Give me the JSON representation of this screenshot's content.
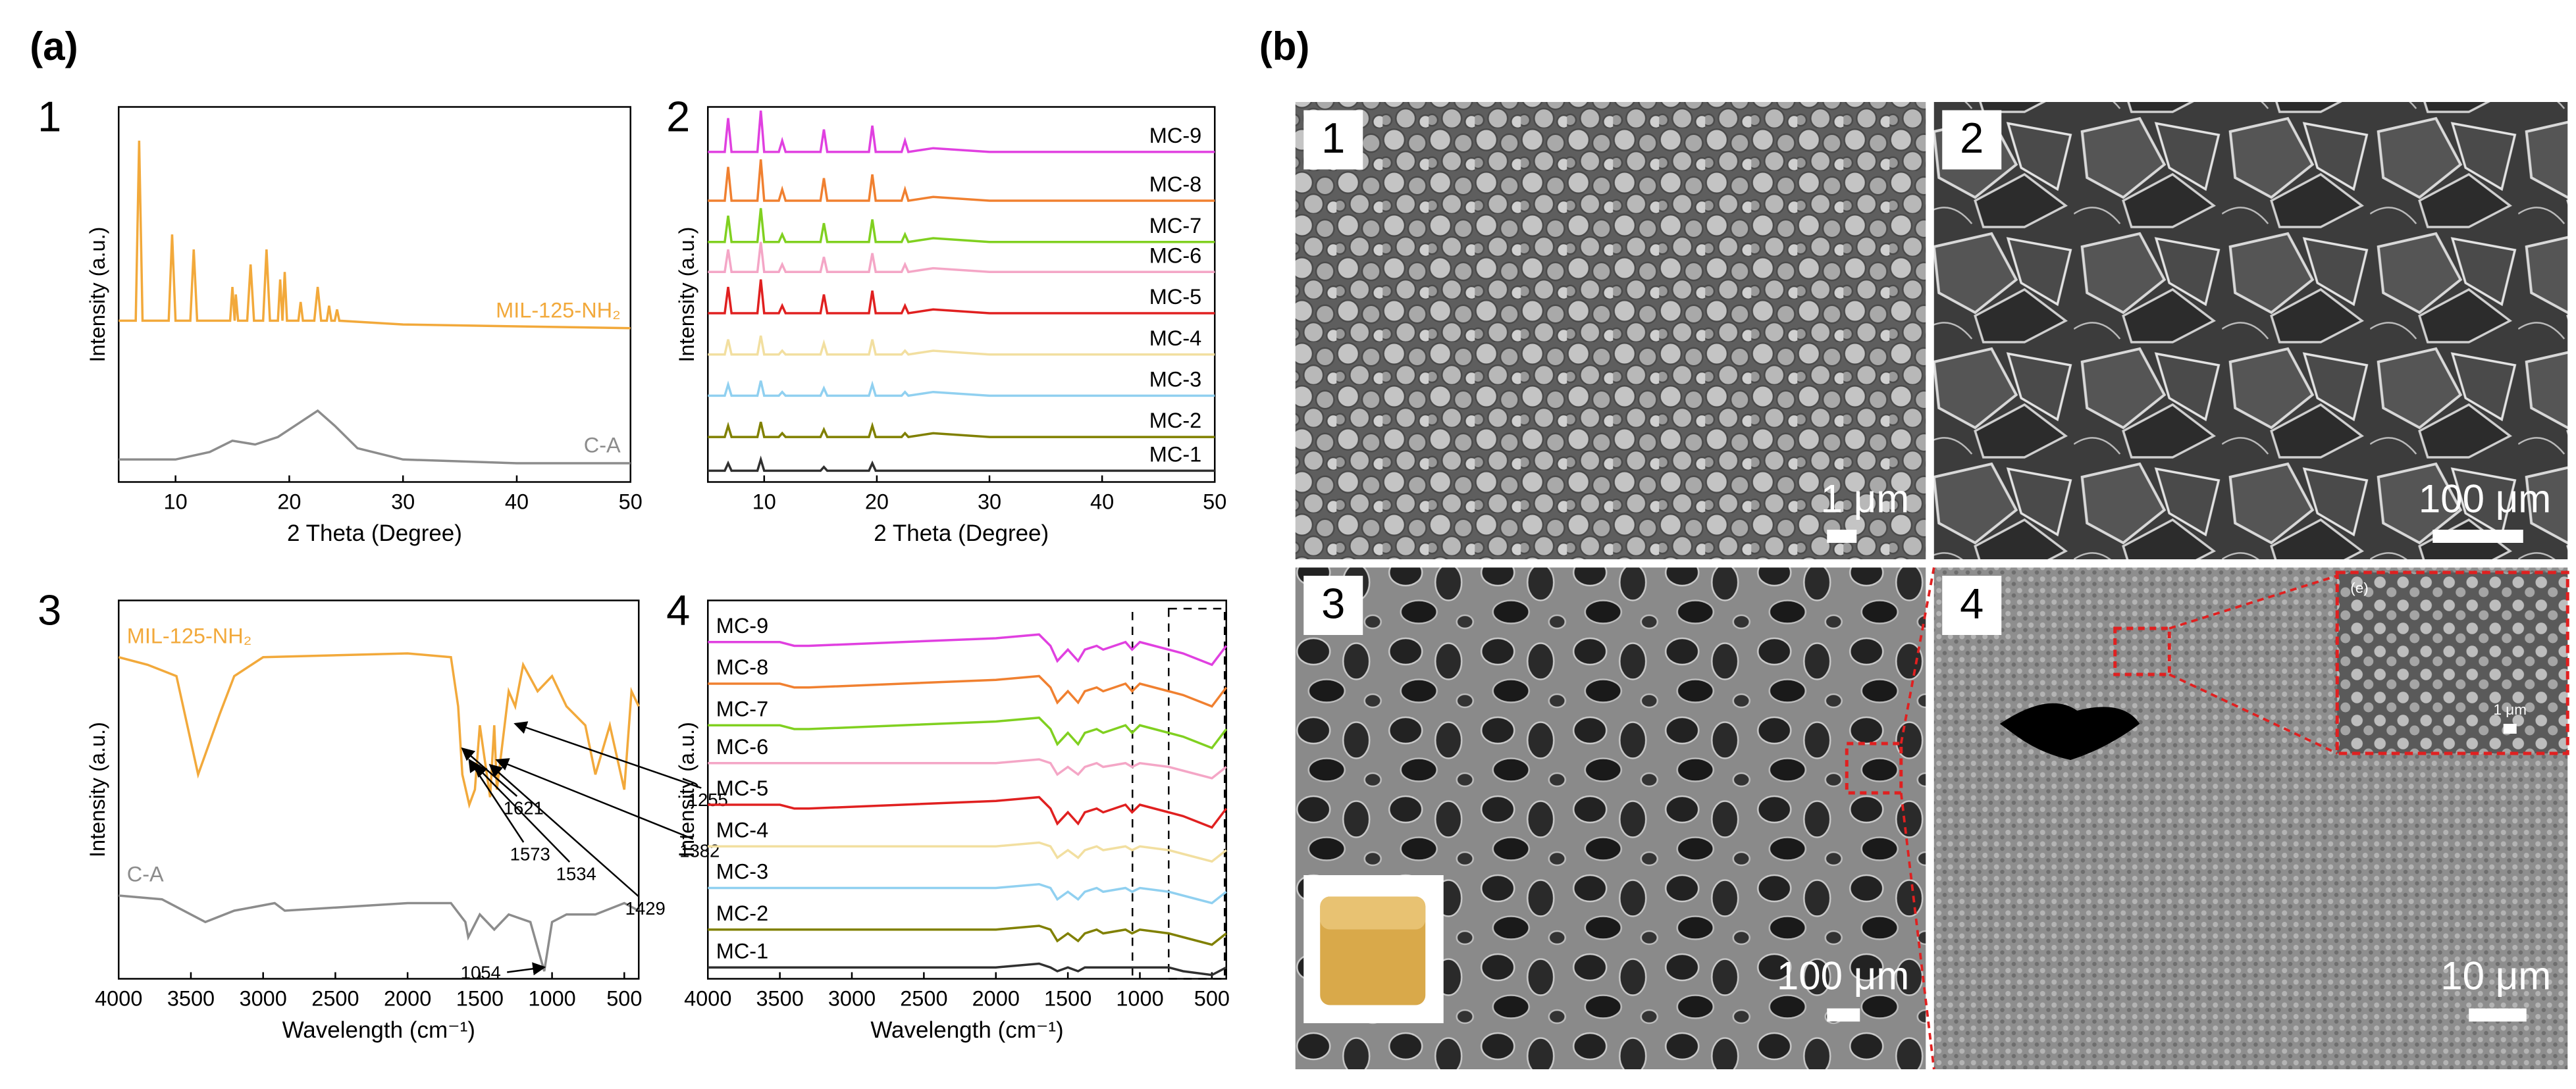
{
  "figure": {
    "label_a": "(a)",
    "label_b": "(b)"
  },
  "chart_data": [
    {
      "type": "line",
      "panel": "1",
      "xlabel": "2 Theta (Degree)",
      "ylabel": "Intensity (a.u.)",
      "xlim": [
        5,
        50
      ],
      "xticks": [
        10,
        20,
        30,
        40,
        50
      ],
      "ylim": [
        0,
        100
      ],
      "series": [
        {
          "name": "MIL-125-NH₂",
          "color": "#f2a93b",
          "x": [
            5,
            6.5,
            6.8,
            7.1,
            9.4,
            9.7,
            10,
            11.3,
            11.6,
            11.9,
            14.8,
            15,
            15.2,
            15.3,
            15.5,
            16.3,
            16.6,
            16.9,
            17.7,
            18,
            18.3,
            19,
            19.2,
            19.4,
            19.6,
            19.8,
            20.8,
            21,
            21.2,
            22.2,
            22.5,
            22.8,
            23.3,
            23.5,
            23.7,
            24,
            24.2,
            24.4,
            30,
            50
          ],
          "values": [
            43,
            43,
            91,
            43,
            43,
            66,
            43,
            43,
            62,
            43,
            43,
            52,
            43,
            50,
            43,
            43,
            58,
            43,
            43,
            62,
            43,
            43,
            54,
            43,
            56,
            43,
            43,
            48,
            43,
            43,
            52,
            43,
            43,
            47,
            43,
            43,
            46,
            43,
            42,
            41
          ]
        },
        {
          "name": "C-A",
          "color": "#8c8c8c",
          "x": [
            5,
            10,
            13,
            15,
            17,
            19,
            21,
            22.5,
            24,
            26,
            30,
            40,
            50
          ],
          "values": [
            6,
            6,
            8,
            11,
            10,
            12,
            16,
            19,
            15,
            9,
            6,
            5,
            5
          ]
        }
      ]
    },
    {
      "type": "line",
      "panel": "2",
      "xlabel": "2 Theta (Degree)",
      "ylabel": "Intensity (a.u.)",
      "xlim": [
        5,
        50
      ],
      "xticks": [
        10,
        20,
        30,
        40,
        50
      ],
      "ylim": [
        0,
        100
      ],
      "x": [
        5,
        6.5,
        6.8,
        7.1,
        9.4,
        9.7,
        10,
        11.3,
        11.6,
        11.9,
        15,
        15.3,
        15.6,
        19.3,
        19.6,
        19.9,
        22.2,
        22.5,
        22.8,
        25,
        30,
        50
      ],
      "series": [
        {
          "name": "MC-9",
          "color": "#e040e0",
          "values": [
            88,
            88,
            97,
            88,
            88,
            99,
            88,
            88,
            91,
            88,
            88,
            94,
            88,
            88,
            95,
            88,
            88,
            91,
            88,
            89,
            88,
            88
          ]
        },
        {
          "name": "MC-8",
          "color": "#f08030",
          "values": [
            75,
            75,
            84,
            75,
            75,
            86,
            75,
            75,
            78,
            75,
            75,
            81,
            75,
            75,
            82,
            75,
            75,
            78,
            75,
            76,
            75,
            75
          ]
        },
        {
          "name": "MC-7",
          "color": "#80d020",
          "values": [
            64,
            64,
            71,
            64,
            64,
            73,
            64,
            64,
            66,
            64,
            64,
            69,
            64,
            64,
            70,
            64,
            64,
            66,
            64,
            65,
            64,
            64
          ]
        },
        {
          "name": "MC-6",
          "color": "#f4a6c6",
          "values": [
            56,
            56,
            62,
            56,
            56,
            64,
            56,
            56,
            58,
            56,
            56,
            60,
            56,
            56,
            61,
            56,
            56,
            58,
            56,
            57,
            56,
            56
          ]
        },
        {
          "name": "MC-5",
          "color": "#e02020",
          "values": [
            45,
            45,
            52,
            45,
            45,
            54,
            45,
            45,
            47,
            45,
            45,
            50,
            45,
            45,
            51,
            45,
            45,
            47,
            45,
            46,
            45,
            45
          ]
        },
        {
          "name": "MC-4",
          "color": "#f2dfa0",
          "values": [
            34,
            34,
            38,
            34,
            34,
            39,
            34,
            34,
            35,
            34,
            34,
            37,
            34,
            34,
            38,
            34,
            34,
            35,
            34,
            35,
            34,
            34
          ]
        },
        {
          "name": "MC-3",
          "color": "#90d0f0",
          "values": [
            23,
            23,
            26,
            23,
            23,
            27,
            23,
            23,
            24,
            23,
            23,
            25,
            23,
            23,
            26,
            23,
            23,
            24,
            23,
            24,
            23,
            23
          ]
        },
        {
          "name": "MC-2",
          "color": "#808000",
          "values": [
            12,
            12,
            15,
            12,
            12,
            16,
            12,
            12,
            13,
            12,
            12,
            14,
            12,
            12,
            15,
            12,
            12,
            13,
            12,
            13,
            12,
            12
          ]
        },
        {
          "name": "MC-1",
          "color": "#303030",
          "values": [
            3,
            3,
            5,
            3,
            3,
            6,
            3,
            3,
            3,
            3,
            3,
            4,
            3,
            3,
            5,
            3,
            3,
            3,
            3,
            3,
            3,
            3
          ]
        }
      ]
    },
    {
      "type": "line",
      "panel": "3",
      "xlabel": "Wavelength (cm⁻¹)",
      "ylabel": "Intensity (a.u.)",
      "xlim": [
        4000,
        400
      ],
      "xticks": [
        4000,
        3500,
        3000,
        2500,
        2000,
        1500,
        1000,
        500
      ],
      "ylim": [
        0,
        100
      ],
      "peak_labels": [
        1621,
        1573,
        1534,
        1429,
        1382,
        1255,
        1054
      ],
      "series": [
        {
          "name": "MIL-125-NH₂",
          "color": "#f2a93b",
          "x": [
            4000,
            3800,
            3600,
            3450,
            3300,
            3200,
            3000,
            2000,
            1700,
            1650,
            1621,
            1573,
            1534,
            1500,
            1429,
            1400,
            1382,
            1300,
            1255,
            1200,
            1100,
            1000,
            900,
            770,
            700,
            600,
            500,
            450,
            400
          ],
          "values": [
            85,
            83,
            80,
            54,
            70,
            80,
            85,
            86,
            85,
            72,
            54,
            46,
            50,
            67,
            48,
            67,
            50,
            76,
            72,
            83,
            76,
            80,
            72,
            67,
            54,
            67,
            50,
            76,
            72
          ]
        },
        {
          "name": "C-A",
          "color": "#8c8c8c",
          "x": [
            4000,
            3700,
            3400,
            3200,
            2920,
            2850,
            2000,
            1700,
            1600,
            1580,
            1500,
            1400,
            1300,
            1150,
            1054,
            1000,
            900,
            700,
            500,
            400
          ],
          "values": [
            22,
            21,
            15,
            18,
            20,
            18,
            20,
            20,
            15,
            11,
            17,
            13,
            17,
            15,
            2,
            15,
            17,
            17,
            20,
            18
          ]
        }
      ]
    },
    {
      "type": "line",
      "panel": "4",
      "xlabel": "Wavelength (cm⁻¹)",
      "ylabel": "Intensity (a.u.)",
      "xlim": [
        4000,
        400
      ],
      "xticks": [
        4000,
        3500,
        3000,
        2500,
        2000,
        1500,
        1000,
        500
      ],
      "ylim": [
        0,
        100
      ],
      "x": [
        4000,
        3500,
        3400,
        3300,
        2000,
        1700,
        1621,
        1573,
        1500,
        1429,
        1382,
        1300,
        1255,
        1100,
        1054,
        1000,
        800,
        700,
        500,
        400
      ],
      "series": [
        {
          "name": "MC-9",
          "color": "#e040e0",
          "values": [
            89,
            89,
            88,
            88,
            90,
            91,
            88,
            84,
            87,
            84,
            87,
            88,
            87,
            89,
            87,
            89,
            87,
            86,
            83,
            88
          ]
        },
        {
          "name": "MC-8",
          "color": "#f08030",
          "values": [
            78,
            78,
            77,
            77,
            79,
            80,
            77,
            73,
            76,
            73,
            76,
            77,
            76,
            78,
            76,
            78,
            76,
            75,
            72,
            77
          ]
        },
        {
          "name": "MC-7",
          "color": "#80d020",
          "values": [
            67,
            67,
            66,
            66,
            68,
            69,
            66,
            62,
            65,
            62,
            65,
            66,
            65,
            67,
            65,
            67,
            65,
            64,
            61,
            66
          ]
        },
        {
          "name": "MC-6",
          "color": "#f4a6c6",
          "values": [
            57,
            57,
            57,
            57,
            57,
            58,
            57,
            54,
            56,
            54,
            56,
            57,
            56,
            57,
            56,
            57,
            56,
            55,
            53,
            56
          ]
        },
        {
          "name": "MC-5",
          "color": "#e02020",
          "values": [
            46,
            46,
            45,
            45,
            47,
            48,
            45,
            41,
            44,
            41,
            44,
            45,
            44,
            46,
            44,
            46,
            44,
            43,
            40,
            45
          ]
        },
        {
          "name": "MC-4",
          "color": "#f2dfa0",
          "values": [
            35,
            35,
            35,
            35,
            35,
            36,
            35,
            32,
            34,
            32,
            34,
            35,
            34,
            35,
            34,
            35,
            34,
            33,
            31,
            34
          ]
        },
        {
          "name": "MC-3",
          "color": "#90d0f0",
          "values": [
            24,
            24,
            24,
            24,
            24,
            25,
            24,
            21,
            23,
            21,
            23,
            24,
            23,
            24,
            23,
            24,
            23,
            22,
            20,
            23
          ]
        },
        {
          "name": "MC-2",
          "color": "#808000",
          "values": [
            13,
            13,
            13,
            13,
            13,
            14,
            13,
            10,
            12,
            10,
            12,
            13,
            12,
            13,
            12,
            13,
            12,
            11,
            9,
            12
          ]
        },
        {
          "name": "MC-1",
          "color": "#303030",
          "values": [
            3,
            3,
            3,
            3,
            3,
            4,
            3,
            2,
            3,
            2,
            3,
            3,
            3,
            3,
            3,
            3,
            3,
            2,
            1,
            3
          ]
        }
      ]
    }
  ],
  "sem_panels": [
    {
      "label": "1",
      "scale": "1 μm"
    },
    {
      "label": "2",
      "scale": "100 μm"
    },
    {
      "label": "3",
      "scale": "100 μm"
    },
    {
      "label": "4",
      "scale": "10 μm",
      "inset_label": "(e)",
      "inset_scale": "1 μm"
    }
  ]
}
